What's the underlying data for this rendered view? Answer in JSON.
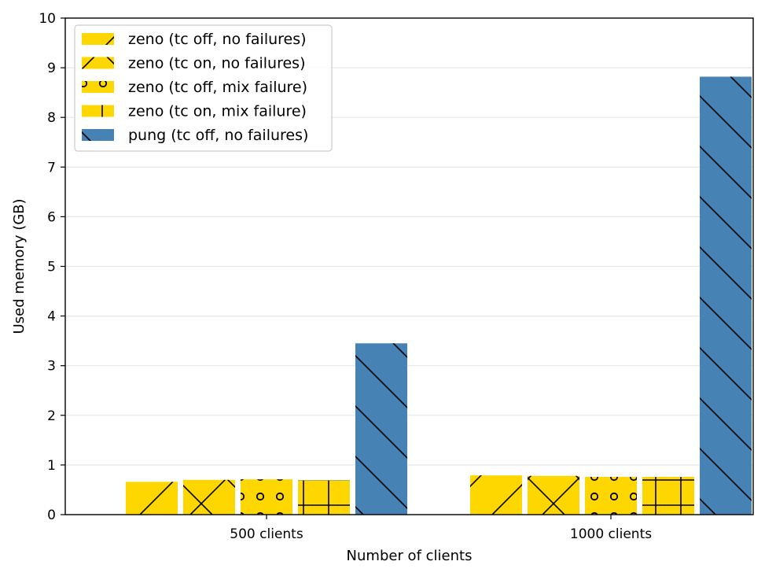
{
  "chart_data": {
    "type": "bar",
    "title": "",
    "xlabel": "Number of clients",
    "ylabel": "Used memory (GB)",
    "ylim": [
      0,
      10
    ],
    "yticks": [
      0,
      1,
      2,
      3,
      4,
      5,
      6,
      7,
      8,
      9,
      10
    ],
    "grid": "horizontal",
    "legend_position": "top-left",
    "categories": [
      "500 clients",
      "1000 clients"
    ],
    "series": [
      {
        "name": "zeno (tc off, no failures)",
        "values": [
          0.66,
          0.79
        ],
        "color": "#FFD700",
        "hatch": "diagonal-forward"
      },
      {
        "name": "zeno (tc on, no failures)",
        "values": [
          0.7,
          0.78
        ],
        "color": "#FFD700",
        "hatch": "cross-diagonal"
      },
      {
        "name": "zeno (tc off, mix failure)",
        "values": [
          0.71,
          0.76
        ],
        "color": "#FFD700",
        "hatch": "circles"
      },
      {
        "name": "zeno (tc on, mix failure)",
        "values": [
          0.69,
          0.76
        ],
        "color": "#FFD700",
        "hatch": "grid"
      },
      {
        "name": "pung (tc off, no failures)",
        "values": [
          3.45,
          8.82
        ],
        "color": "#4682B4",
        "hatch": "diagonal-back"
      }
    ]
  }
}
